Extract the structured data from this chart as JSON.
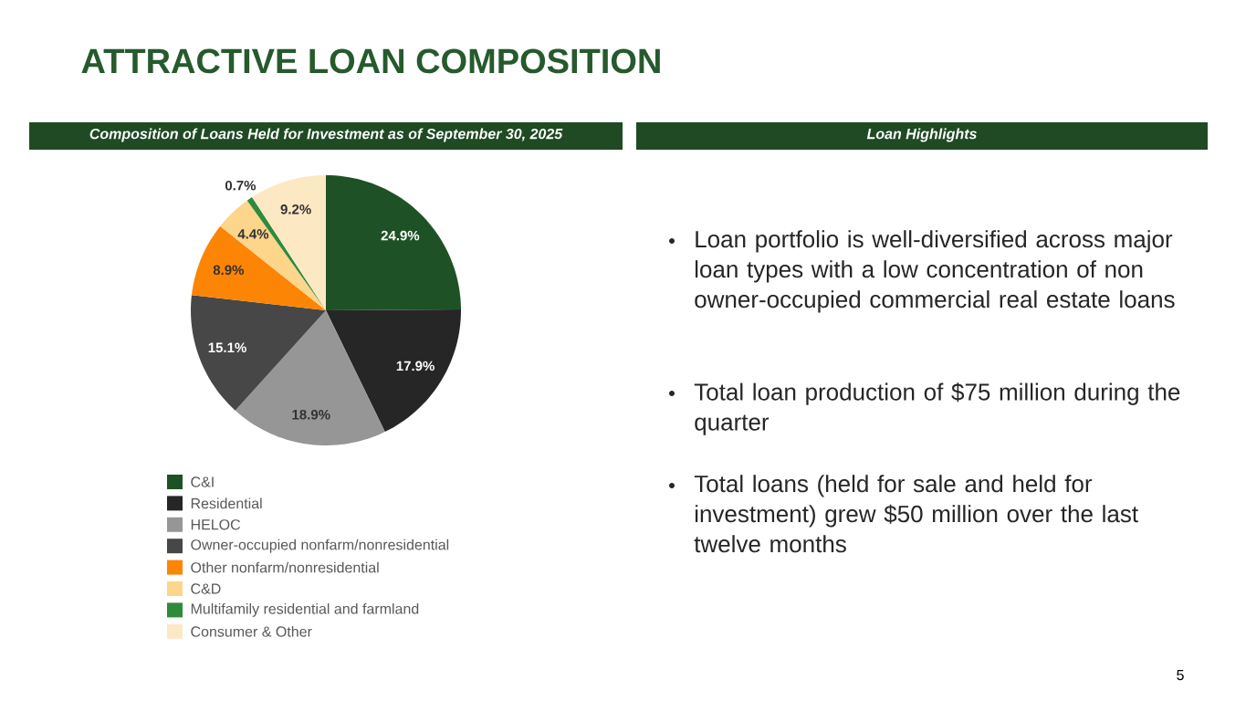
{
  "chart_data": [
    {
      "type": "pie",
      "title": "ATTRACTIVE LOAN COMPOSITION",
      "subtitle": "Composition of Loans Held for Investment as of September 30, 2025",
      "categories": [
        "C&I",
        "Residential",
        "HELOC",
        "Owner-occupied nonfarm/nonresidential",
        "Other nonfarm/nonresidential",
        "C&D",
        "Multifamily residential and farmland",
        "Consumer & Other"
      ],
      "values": [
        24.9,
        17.9,
        18.9,
        15.1,
        8.9,
        4.4,
        0.7,
        9.2
      ],
      "colors": [
        "#1f5126",
        "#262626",
        "#969696",
        "#474747",
        "#fd8505",
        "#fdd58b",
        "#2e8b3c",
        "#fde8c4"
      ],
      "value_labels": [
        "24.9%",
        "17.9%",
        "18.9%",
        "15.1%",
        "8.9%",
        "4.4%",
        "0.7%",
        "9.2%"
      ],
      "legend": "bottom",
      "annotations": [
        "5"
      ]
    },
    {
      "type": "other",
      "title": "Loan Highlights",
      "annotations": [
        "Loan portfolio is well-diversified across major loan types with a low concentration of non owner-occupied commercial real estate loans",
        "Total loan production of $75 million during the quarter",
        "Total loans (held for sale and held for investment) grew $50 million over the last twelve months"
      ]
    }
  ]
}
